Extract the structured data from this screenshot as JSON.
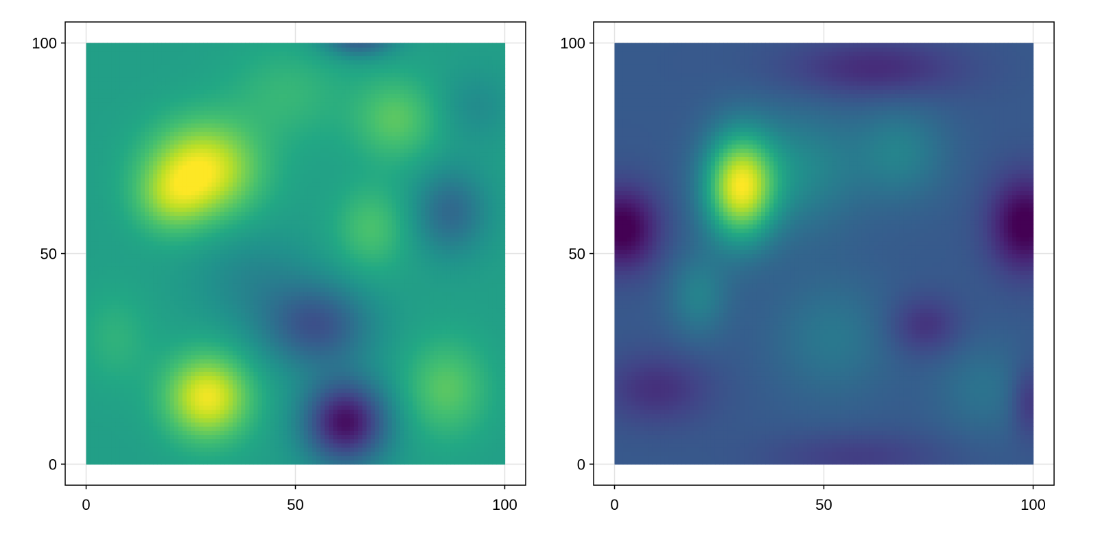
{
  "chart_data": [
    {
      "type": "heatmap",
      "title": "",
      "xlabel": "",
      "ylabel": "",
      "xlim": [
        -5,
        105
      ],
      "ylim": [
        -5,
        105
      ],
      "x_range": [
        0,
        100
      ],
      "y_range": [
        0,
        100
      ],
      "x_ticks": [
        0,
        50,
        100
      ],
      "y_ticks": [
        0,
        50,
        100
      ],
      "x_tick_labels": [
        "0",
        "50",
        "100"
      ],
      "y_tick_labels": [
        "0",
        "50",
        "100"
      ],
      "grid": true,
      "colormap": "viridis",
      "value_range": [
        0,
        1
      ],
      "background_level": 0.56,
      "features": [
        {
          "x": 28,
          "y": 70,
          "amplitude": 0.42,
          "sx": 9,
          "sy": 8
        },
        {
          "x": 20,
          "y": 63,
          "amplitude": 0.18,
          "sx": 6,
          "sy": 6
        },
        {
          "x": 29,
          "y": 16,
          "amplitude": 0.42,
          "sx": 7,
          "sy": 7
        },
        {
          "x": 74,
          "y": 82,
          "amplitude": 0.18,
          "sx": 7,
          "sy": 7
        },
        {
          "x": 68,
          "y": 56,
          "amplitude": 0.15,
          "sx": 6,
          "sy": 7
        },
        {
          "x": 48,
          "y": 88,
          "amplitude": 0.1,
          "sx": 10,
          "sy": 8
        },
        {
          "x": 86,
          "y": 18,
          "amplitude": 0.18,
          "sx": 7,
          "sy": 8
        },
        {
          "x": 7,
          "y": 30,
          "amplitude": 0.08,
          "sx": 6,
          "sy": 8
        },
        {
          "x": 62,
          "y": 10,
          "amplitude": -0.52,
          "sx": 7,
          "sy": 7
        },
        {
          "x": 55,
          "y": 33,
          "amplitude": -0.3,
          "sx": 9,
          "sy": 7
        },
        {
          "x": 87,
          "y": 60,
          "amplitude": -0.22,
          "sx": 6,
          "sy": 7
        },
        {
          "x": 65,
          "y": 101,
          "amplitude": -0.28,
          "sx": 6,
          "sy": 3
        },
        {
          "x": 40,
          "y": 44,
          "amplitude": -0.1,
          "sx": 10,
          "sy": 8
        },
        {
          "x": 93,
          "y": 85,
          "amplitude": -0.08,
          "sx": 6,
          "sy": 6
        }
      ]
    },
    {
      "type": "heatmap",
      "title": "",
      "xlabel": "",
      "ylabel": "",
      "xlim": [
        -5,
        105
      ],
      "ylim": [
        -5,
        105
      ],
      "x_range": [
        0,
        100
      ],
      "y_range": [
        0,
        100
      ],
      "x_ticks": [
        0,
        50,
        100
      ],
      "y_ticks": [
        0,
        50,
        100
      ],
      "x_tick_labels": [
        "0",
        "50",
        "100"
      ],
      "y_tick_labels": [
        "0",
        "50",
        "100"
      ],
      "grid": true,
      "colormap": "viridis",
      "value_range": [
        0,
        1
      ],
      "background_level": 0.28,
      "features": [
        {
          "x": 30,
          "y": 66,
          "amplitude": 0.68,
          "sx": 6,
          "sy": 9
        },
        {
          "x": 45,
          "y": 70,
          "amplitude": 0.18,
          "sx": 9,
          "sy": 10
        },
        {
          "x": 68,
          "y": 74,
          "amplitude": 0.16,
          "sx": 8,
          "sy": 8
        },
        {
          "x": 20,
          "y": 40,
          "amplitude": 0.16,
          "sx": 5,
          "sy": 7
        },
        {
          "x": 52,
          "y": 30,
          "amplitude": 0.12,
          "sx": 10,
          "sy": 10
        },
        {
          "x": 88,
          "y": 18,
          "amplitude": 0.1,
          "sx": 8,
          "sy": 8
        },
        {
          "x": 2,
          "y": 56,
          "amplitude": -0.3,
          "sx": 6,
          "sy": 7
        },
        {
          "x": 98,
          "y": 57,
          "amplitude": -0.3,
          "sx": 6,
          "sy": 8
        },
        {
          "x": 62,
          "y": 94,
          "amplitude": -0.16,
          "sx": 15,
          "sy": 5
        },
        {
          "x": 10,
          "y": 18,
          "amplitude": -0.14,
          "sx": 9,
          "sy": 6
        },
        {
          "x": 74,
          "y": 33,
          "amplitude": -0.14,
          "sx": 6,
          "sy": 5
        },
        {
          "x": 58,
          "y": 2,
          "amplitude": -0.1,
          "sx": 15,
          "sy": 4
        },
        {
          "x": 99,
          "y": 15,
          "amplitude": -0.14,
          "sx": 3,
          "sy": 6
        }
      ]
    }
  ]
}
